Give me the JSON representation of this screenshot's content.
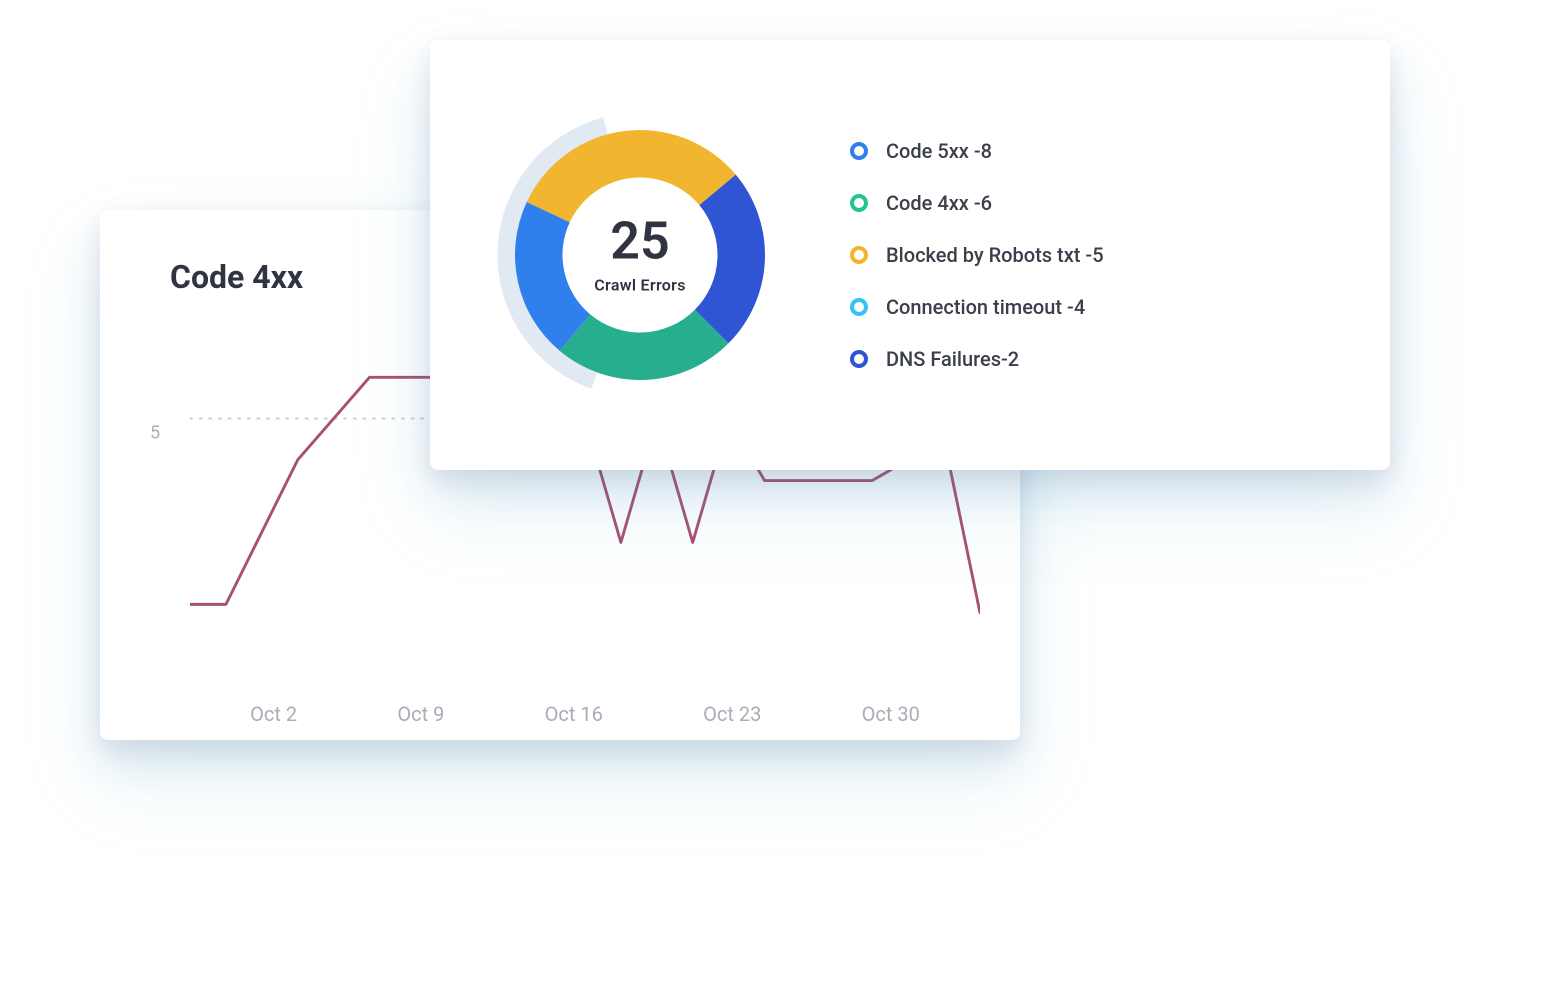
{
  "line_chart": {
    "type": "line",
    "title": "Code 4xx",
    "title_color": "#2f3440",
    "title_fontsize": 32,
    "line_color": "#a8506f",
    "line_width": 3,
    "dotted_ref_color": "#c9ccd3",
    "background_color": "#ffffff",
    "axis_label_color": "#a8adb7",
    "axis_label_fontsize": 20,
    "y_ref_value": 5,
    "y_ref_label": "5",
    "ylim": [
      0,
      7
    ],
    "x_labels": [
      "Oct 2",
      "Oct 9",
      "Oct 16",
      "Oct 23",
      "Oct 30"
    ],
    "points": [
      {
        "x": 0,
        "y": 0.5
      },
      {
        "x": 1,
        "y": 0.5
      },
      {
        "x": 3,
        "y": 4.0
      },
      {
        "x": 5,
        "y": 6.0
      },
      {
        "x": 7,
        "y": 6.0
      },
      {
        "x": 9,
        "y": 5.0
      },
      {
        "x": 11,
        "y": 5.0
      },
      {
        "x": 12,
        "y": 2.0
      },
      {
        "x": 13,
        "y": 5.0
      },
      {
        "x": 14,
        "y": 2.0
      },
      {
        "x": 15,
        "y": 5.0
      },
      {
        "x": 16,
        "y": 3.5
      },
      {
        "x": 19,
        "y": 3.5
      },
      {
        "x": 21,
        "y": 4.5
      },
      {
        "x": 22,
        "y": 0.3
      }
    ],
    "x_domain": [
      0,
      22
    ]
  },
  "donut_chart": {
    "type": "donut",
    "center_value": "25",
    "center_caption": "Crawl Errors",
    "center_value_fontsize": 52,
    "center_caption_fontsize": 16,
    "text_color": "#2f3440",
    "background_color": "#ffffff",
    "ring_outer_radius": 100,
    "ring_inner_radius": 62,
    "halo_color": "#c9d7ea",
    "halo_opacity": 0.55,
    "slices": [
      {
        "label": "Code 5xx -8",
        "value": 8,
        "color": "#2f80ed",
        "legend_ring": "#2f80ed"
      },
      {
        "label": "Code 4xx -6",
        "value": 6,
        "color": "#27ae8e",
        "legend_ring": "#22c58f"
      },
      {
        "label": "Blocked by Robots txt -5",
        "value": 5,
        "color": "#f2b530",
        "legend_ring": "#f2b530"
      },
      {
        "label": "Connection timeout -4",
        "value": 4,
        "color": "#3aa6f4",
        "legend_ring": "#35c3f4"
      },
      {
        "label": "DNS Failures-2",
        "value": 2,
        "color": "#2f55d4",
        "legend_ring": "#2f55d4"
      }
    ],
    "slice_render_order": [
      {
        "key": 2,
        "color": "#f2b530"
      },
      {
        "key": 4,
        "color": "#2f55d4"
      },
      {
        "key": 1,
        "color": "#27ae8e"
      },
      {
        "key": 0,
        "color": "#2f80ed"
      }
    ],
    "slice_angles_deg": [
      {
        "start": -65,
        "end": 50
      },
      {
        "start": 50,
        "end": 135
      },
      {
        "start": 135,
        "end": 220
      },
      {
        "start": 220,
        "end": 295
      }
    ],
    "legend_label_fontsize": 20,
    "legend_label_color": "#3a3f4a"
  }
}
